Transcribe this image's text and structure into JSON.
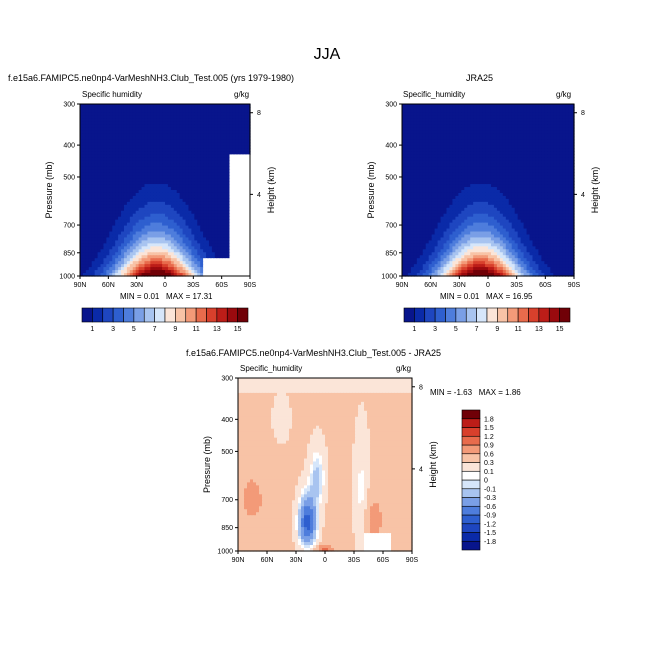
{
  "figure": {
    "title": "JJA"
  },
  "colors": {
    "background": "#ffffff",
    "frame": "#000000"
  },
  "chart_data": [
    {
      "type": "heatmap",
      "title": "f.e15a6.FAMIPC5.ne0np4-VarMeshNH3.Club_Test.005 (yrs 1979-1980)",
      "variable": "Specific humidity",
      "units": "g/kg",
      "xlabel": "",
      "ylabel": "Pressure (mb)",
      "ylabel_right": "Height (km)",
      "x_ticks": [
        "90N",
        "60N",
        "30N",
        "0",
        "30S",
        "60S",
        "90S"
      ],
      "x_range": [
        90,
        -90
      ],
      "y_ticks": [
        300,
        400,
        500,
        700,
        850,
        1000
      ],
      "y_range": [
        1000,
        300
      ],
      "y_scale": "log",
      "height_ticks": [
        4,
        8
      ],
      "min": 0.01,
      "max": 17.31,
      "min_text": "MIN =   0.01",
      "max_text": "MAX =  17.31",
      "colorbar": {
        "orientation": "horizontal",
        "levels": [
          1,
          2,
          3,
          4,
          5,
          6,
          7,
          8,
          9,
          10,
          11,
          12,
          13,
          14,
          15
        ],
        "tick_labels": [
          "1",
          "3",
          "5",
          "7",
          "9",
          "11",
          "13",
          "15"
        ],
        "colors": [
          "#08158c",
          "#0a2aa8",
          "#1e46c0",
          "#2e5fcf",
          "#4e7ddc",
          "#7a9fe6",
          "#a8c4f0",
          "#d6e6fa",
          "#fbe5d8",
          "#f8c3a6",
          "#f39a78",
          "#e86b4c",
          "#d8402c",
          "#bc1d18",
          "#9a0a0e",
          "#700007"
        ]
      },
      "field": "model"
    },
    {
      "type": "heatmap",
      "title": "JRA25",
      "variable": "Specific_humidity",
      "units": "g/kg",
      "xlabel": "",
      "ylabel": "Pressure (mb)",
      "ylabel_right": "Height (km)",
      "x_ticks": [
        "90N",
        "60N",
        "30N",
        "0",
        "30S",
        "60S",
        "90S"
      ],
      "x_range": [
        90,
        -90
      ],
      "y_ticks": [
        300,
        400,
        500,
        700,
        850,
        1000
      ],
      "y_range": [
        1000,
        300
      ],
      "y_scale": "log",
      "height_ticks": [
        4,
        8
      ],
      "min": 0.01,
      "max": 16.95,
      "min_text": "MIN =   0.01",
      "max_text": "MAX =  16.95",
      "colorbar": {
        "orientation": "horizontal",
        "levels": [
          1,
          2,
          3,
          4,
          5,
          6,
          7,
          8,
          9,
          10,
          11,
          12,
          13,
          14,
          15
        ],
        "tick_labels": [
          "1",
          "3",
          "5",
          "7",
          "9",
          "11",
          "13",
          "15"
        ],
        "colors": [
          "#08158c",
          "#0a2aa8",
          "#1e46c0",
          "#2e5fcf",
          "#4e7ddc",
          "#7a9fe6",
          "#a8c4f0",
          "#d6e6fa",
          "#fbe5d8",
          "#f8c3a6",
          "#f39a78",
          "#e86b4c",
          "#d8402c",
          "#bc1d18",
          "#9a0a0e",
          "#700007"
        ]
      },
      "field": "obs"
    },
    {
      "type": "heatmap",
      "title": "f.e15a6.FAMIPC5.ne0np4-VarMeshNH3.Club_Test.005 - JRA25",
      "variable": "Specific_humidity",
      "units": "g/kg",
      "xlabel": "",
      "ylabel": "Pressure (mb)",
      "ylabel_right": "Height (km)",
      "x_ticks": [
        "90N",
        "60N",
        "30N",
        "0",
        "30S",
        "60S",
        "90S"
      ],
      "x_range": [
        90,
        -90
      ],
      "y_ticks": [
        300,
        400,
        500,
        700,
        850,
        1000
      ],
      "y_range": [
        1000,
        300
      ],
      "y_scale": "log",
      "height_ticks": [
        4,
        8
      ],
      "min": -1.63,
      "max": 1.86,
      "min_text": "MIN =  -1.63",
      "max_text": "MAX =   1.86",
      "colorbar": {
        "orientation": "vertical",
        "levels": [
          -1.8,
          -1.5,
          -1.2,
          -0.9,
          -0.6,
          -0.3,
          -0.1,
          0,
          0.1,
          0.3,
          0.6,
          0.9,
          1.2,
          1.5,
          1.8
        ],
        "tick_labels": [
          "-1.8",
          "-1.5",
          "-1.2",
          "-0.9",
          "-0.6",
          "-0.3",
          "-0.1",
          "0",
          "0.1",
          "0.3",
          "0.6",
          "0.9",
          "1.2",
          "1.5",
          "1.8"
        ],
        "colors": [
          "#08158c",
          "#0a2aa8",
          "#1e46c0",
          "#2e5fcf",
          "#4e7ddc",
          "#7a9fe6",
          "#a8c4f0",
          "#d6e6fa",
          "#ffffff",
          "#fbe5d8",
          "#f8c3a6",
          "#f39a78",
          "#e86b4c",
          "#d8402c",
          "#bc1d18",
          "#700007"
        ]
      },
      "field": "diff"
    }
  ]
}
